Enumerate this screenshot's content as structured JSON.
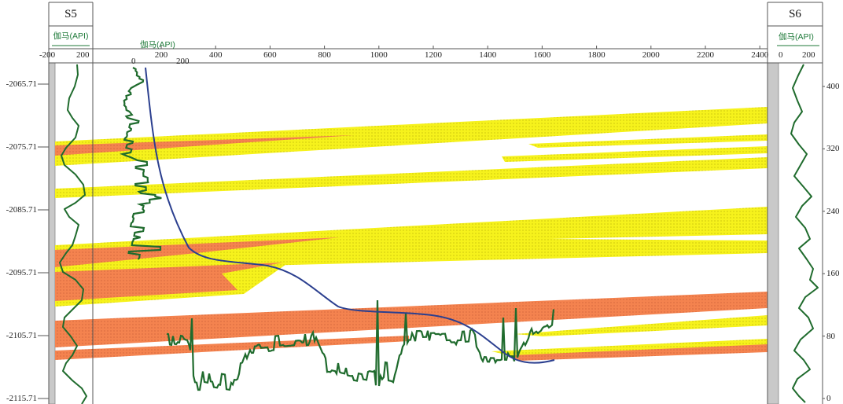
{
  "wells": {
    "left": {
      "name": "S5",
      "log_label": "伽马(API)",
      "scale_min": "-200",
      "scale_max": "200"
    },
    "right": {
      "name": "S6",
      "log_label": "伽马(API)",
      "scale_min": "0",
      "scale_max": "200"
    }
  },
  "horizontal_log": {
    "label": "伽马(API)",
    "scale_min": "0",
    "scale_max": "200"
  },
  "top_axis": {
    "ticks": [
      "200",
      "400",
      "600",
      "800",
      "1000",
      "1200",
      "1400",
      "1600",
      "1800",
      "2000",
      "2200",
      "2400"
    ]
  },
  "depth_axis": {
    "labels": [
      "-2065.71",
      "-2075.71",
      "-2085.71",
      "-2095.71",
      "-2105.71",
      "-2115.71"
    ]
  },
  "right_axis": {
    "labels": [
      "400",
      "320",
      "240",
      "160",
      "80",
      "0"
    ]
  },
  "colors": {
    "sand_yellow": "#f6f21c",
    "sand_orange": "#f4834f",
    "well_path": "#2b3f8f",
    "gamma_log": "#1f6b2d",
    "depth_track": "#c9c9c9"
  }
}
